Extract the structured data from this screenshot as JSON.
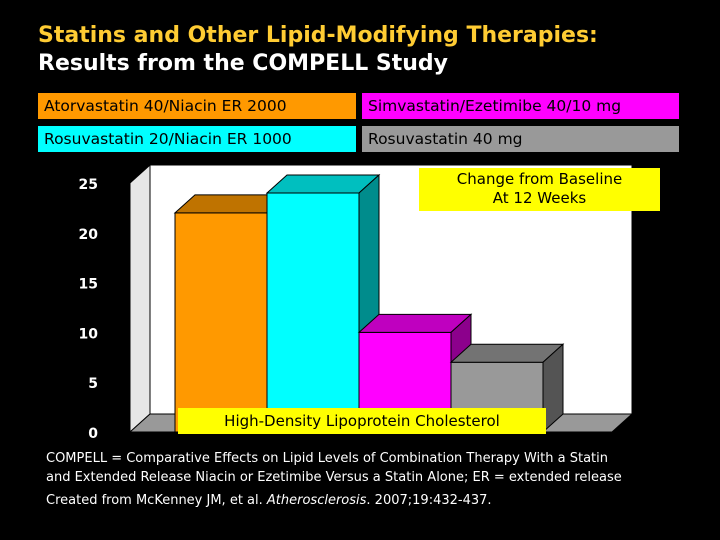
{
  "title": {
    "line1": "Statins and Other Lipid-Modifying Therapies:",
    "line2": "Results from the COMPELL Study"
  },
  "legend": [
    {
      "label": "Atorvastatin 40/Niacin ER 2000",
      "color": "#ff9900"
    },
    {
      "label": "Simvastatin/Ezetimibe 40/10 mg",
      "color": "#ff00ff"
    },
    {
      "label": "Rosuvastatin 20/Niacin ER 1000",
      "color": "#00ffff"
    },
    {
      "label": "Rosuvastatin 40 mg",
      "color": "#999999"
    }
  ],
  "chart_label": {
    "line1": "Change from Baseline",
    "line2": "At 12 Weeks"
  },
  "chart_data": {
    "type": "bar",
    "categories": [
      "Atorvastatin 40/Niacin ER 2000",
      "Rosuvastatin 20/Niacin ER 1000",
      "Simvastatin/Ezetimibe 40/10 mg",
      "Rosuvastatin 40 mg"
    ],
    "values": [
      22,
      24,
      10,
      7
    ],
    "colors": [
      "#ff9900",
      "#00ffff",
      "#ff00ff",
      "#999999"
    ],
    "xlabel": "High-Density Lipoprotein Cholesterol",
    "ylabel": "",
    "ylim": [
      0,
      25
    ],
    "yticks": [
      "0",
      "5",
      "10",
      "15",
      "20",
      "25"
    ],
    "style": "3d",
    "grid": false
  },
  "footnote": {
    "line1": "COMPELL = Comparative Effects on Lipid Levels of Combination Therapy With a Statin",
    "line2": "and Extended Release Niacin or Ezetimibe Versus a Statin Alone; ER = extended release"
  },
  "source": {
    "prefix": "Created from McKenney JM, et al. ",
    "journal": "Atherosclerosis",
    "suffix": ". 2007;19:432-437."
  }
}
